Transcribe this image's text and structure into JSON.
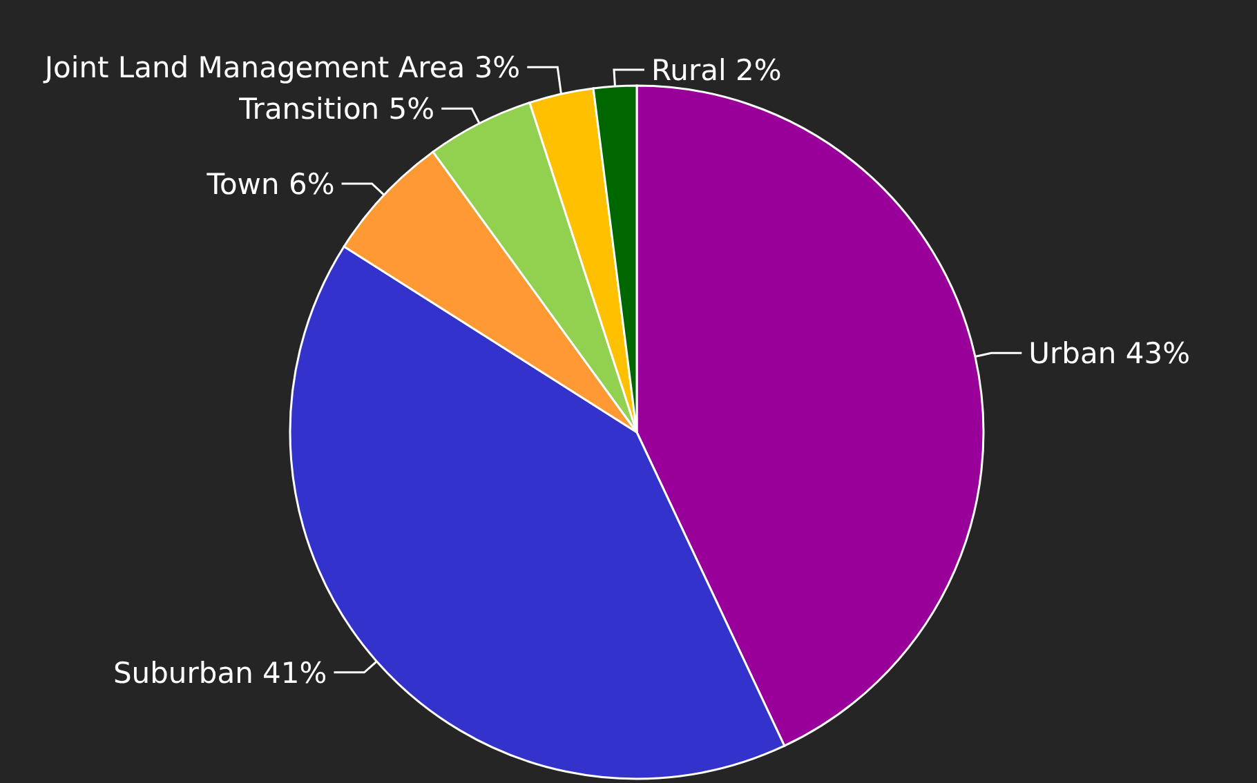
{
  "chart_data": {
    "type": "pie",
    "categories": [
      "Urban",
      "Suburban",
      "Town",
      "Transition",
      "Joint Land Management Area",
      "Rural"
    ],
    "values": [
      43,
      41,
      6,
      5,
      3,
      2
    ],
    "value_labels": [
      "43%",
      "41%",
      "6%",
      "5%",
      "3%",
      "2%"
    ],
    "colors": [
      "#990099",
      "#3333cc",
      "#ff9933",
      "#92d050",
      "#ffc000",
      "#006600"
    ]
  }
}
